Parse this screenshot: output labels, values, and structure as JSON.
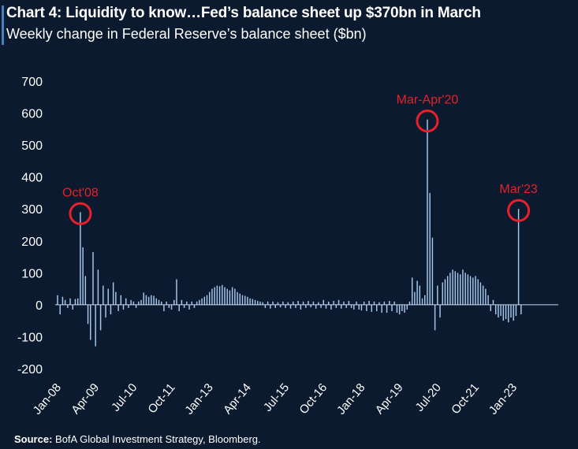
{
  "chart_data": {
    "type": "bar",
    "title": "Chart 4: Liquidity to know…Fed’s balance sheet up $370bn in March",
    "subtitle": "Weekly change in Federal Reserve’s balance sheet ($bn)",
    "xlabel": "",
    "ylabel": "",
    "ylim": [
      -200,
      700
    ],
    "yticks": [
      700,
      600,
      500,
      400,
      300,
      200,
      100,
      0,
      -100,
      -200
    ],
    "xlim": [
      "2008-01",
      "2024-07"
    ],
    "xticks": [
      {
        "label": "Jan-08",
        "date": "2008-01"
      },
      {
        "label": "Apr-09",
        "date": "2009-04"
      },
      {
        "label": "Jul-10",
        "date": "2010-07"
      },
      {
        "label": "Oct-11",
        "date": "2011-10"
      },
      {
        "label": "Jan-13",
        "date": "2013-01"
      },
      {
        "label": "Apr-14",
        "date": "2014-04"
      },
      {
        "label": "Jul-15",
        "date": "2015-07"
      },
      {
        "label": "Oct-16",
        "date": "2016-10"
      },
      {
        "label": "Jan-18",
        "date": "2018-01"
      },
      {
        "label": "Apr-19",
        "date": "2019-04"
      },
      {
        "label": "Jul-20",
        "date": "2020-07"
      },
      {
        "label": "Oct-21",
        "date": "2021-10"
      },
      {
        "label": "Jan-23",
        "date": "2023-01"
      }
    ],
    "grid": false,
    "series": [
      {
        "color": "#a9c8f0",
        "points": [
          [
            "2008-01",
            30
          ],
          [
            "2008-02",
            -30
          ],
          [
            "2008-03",
            25
          ],
          [
            "2008-04",
            15
          ],
          [
            "2008-05",
            -10
          ],
          [
            "2008-06",
            20
          ],
          [
            "2008-07",
            -15
          ],
          [
            "2008-08",
            18
          ],
          [
            "2008-09",
            20
          ],
          [
            "2008-10",
            290
          ],
          [
            "2008-11",
            180
          ],
          [
            "2008-12",
            90
          ],
          [
            "2009-01",
            -60
          ],
          [
            "2009-02",
            -110
          ],
          [
            "2009-03",
            165
          ],
          [
            "2009-04",
            -130
          ],
          [
            "2009-05",
            110
          ],
          [
            "2009-06",
            -80
          ],
          [
            "2009-07",
            60
          ],
          [
            "2009-08",
            -40
          ],
          [
            "2009-09",
            50
          ],
          [
            "2009-10",
            -30
          ],
          [
            "2009-11",
            70
          ],
          [
            "2009-12",
            40
          ],
          [
            "2010-01",
            -20
          ],
          [
            "2010-02",
            30
          ],
          [
            "2010-03",
            -15
          ],
          [
            "2010-04",
            20
          ],
          [
            "2010-05",
            -10
          ],
          [
            "2010-06",
            15
          ],
          [
            "2010-07",
            10
          ],
          [
            "2010-08",
            -10
          ],
          [
            "2010-09",
            10
          ],
          [
            "2010-10",
            15
          ],
          [
            "2010-11",
            38
          ],
          [
            "2010-12",
            30
          ],
          [
            "2011-01",
            25
          ],
          [
            "2011-02",
            30
          ],
          [
            "2011-03",
            28
          ],
          [
            "2011-04",
            20
          ],
          [
            "2011-05",
            15
          ],
          [
            "2011-06",
            10
          ],
          [
            "2011-07",
            -20
          ],
          [
            "2011-08",
            10
          ],
          [
            "2011-09",
            -10
          ],
          [
            "2011-10",
            -15
          ],
          [
            "2011-11",
            15
          ],
          [
            "2011-12",
            80
          ],
          [
            "2012-01",
            -20
          ],
          [
            "2012-02",
            15
          ],
          [
            "2012-03",
            -10
          ],
          [
            "2012-04",
            10
          ],
          [
            "2012-05",
            -15
          ],
          [
            "2012-06",
            10
          ],
          [
            "2012-07",
            -10
          ],
          [
            "2012-08",
            10
          ],
          [
            "2012-09",
            15
          ],
          [
            "2012-10",
            20
          ],
          [
            "2012-11",
            25
          ],
          [
            "2012-12",
            30
          ],
          [
            "2013-01",
            40
          ],
          [
            "2013-02",
            50
          ],
          [
            "2013-03",
            55
          ],
          [
            "2013-04",
            60
          ],
          [
            "2013-05",
            58
          ],
          [
            "2013-06",
            62
          ],
          [
            "2013-07",
            55
          ],
          [
            "2013-08",
            50
          ],
          [
            "2013-09",
            45
          ],
          [
            "2013-10",
            55
          ],
          [
            "2013-11",
            50
          ],
          [
            "2013-12",
            40
          ],
          [
            "2014-01",
            35
          ],
          [
            "2014-02",
            30
          ],
          [
            "2014-03",
            28
          ],
          [
            "2014-04",
            25
          ],
          [
            "2014-05",
            20
          ],
          [
            "2014-06",
            18
          ],
          [
            "2014-07",
            15
          ],
          [
            "2014-08",
            12
          ],
          [
            "2014-09",
            10
          ],
          [
            "2014-10",
            8
          ],
          [
            "2014-11",
            -10
          ],
          [
            "2014-12",
            10
          ],
          [
            "2015-01",
            -12
          ],
          [
            "2015-02",
            10
          ],
          [
            "2015-03",
            -10
          ],
          [
            "2015-04",
            8
          ],
          [
            "2015-05",
            -8
          ],
          [
            "2015-06",
            10
          ],
          [
            "2015-07",
            -10
          ],
          [
            "2015-08",
            8
          ],
          [
            "2015-09",
            -12
          ],
          [
            "2015-10",
            10
          ],
          [
            "2015-11",
            -10
          ],
          [
            "2015-12",
            12
          ],
          [
            "2016-01",
            -15
          ],
          [
            "2016-02",
            10
          ],
          [
            "2016-03",
            -10
          ],
          [
            "2016-04",
            12
          ],
          [
            "2016-05",
            -8
          ],
          [
            "2016-06",
            10
          ],
          [
            "2016-07",
            -12
          ],
          [
            "2016-08",
            8
          ],
          [
            "2016-09",
            -10
          ],
          [
            "2016-10",
            15
          ],
          [
            "2016-11",
            -12
          ],
          [
            "2016-12",
            10
          ],
          [
            "2017-01",
            -15
          ],
          [
            "2017-02",
            12
          ],
          [
            "2017-03",
            -10
          ],
          [
            "2017-04",
            15
          ],
          [
            "2017-05",
            -12
          ],
          [
            "2017-06",
            10
          ],
          [
            "2017-07",
            -10
          ],
          [
            "2017-08",
            12
          ],
          [
            "2017-09",
            -10
          ],
          [
            "2017-10",
            -15
          ],
          [
            "2017-11",
            10
          ],
          [
            "2017-12",
            -15
          ],
          [
            "2018-01",
            -18
          ],
          [
            "2018-02",
            10
          ],
          [
            "2018-03",
            -20
          ],
          [
            "2018-04",
            12
          ],
          [
            "2018-05",
            -22
          ],
          [
            "2018-06",
            10
          ],
          [
            "2018-07",
            -20
          ],
          [
            "2018-08",
            8
          ],
          [
            "2018-09",
            -25
          ],
          [
            "2018-10",
            10
          ],
          [
            "2018-11",
            -25
          ],
          [
            "2018-12",
            12
          ],
          [
            "2019-01",
            -20
          ],
          [
            "2019-02",
            10
          ],
          [
            "2019-03",
            -25
          ],
          [
            "2019-04",
            -30
          ],
          [
            "2019-05",
            -20
          ],
          [
            "2019-06",
            -25
          ],
          [
            "2019-07",
            -15
          ],
          [
            "2019-08",
            10
          ],
          [
            "2019-09",
            85
          ],
          [
            "2019-10",
            40
          ],
          [
            "2019-11",
            75
          ],
          [
            "2019-12",
            60
          ],
          [
            "2020-01",
            20
          ],
          [
            "2020-02",
            30
          ],
          [
            "2020-03",
            580
          ],
          [
            "2020-04",
            350
          ],
          [
            "2020-05",
            210
          ],
          [
            "2020-06",
            -80
          ],
          [
            "2020-07",
            60
          ],
          [
            "2020-08",
            -40
          ],
          [
            "2020-09",
            70
          ],
          [
            "2020-10",
            80
          ],
          [
            "2020-11",
            90
          ],
          [
            "2020-12",
            100
          ],
          [
            "2021-01",
            110
          ],
          [
            "2021-02",
            105
          ],
          [
            "2021-03",
            100
          ],
          [
            "2021-04",
            95
          ],
          [
            "2021-05",
            110
          ],
          [
            "2021-06",
            100
          ],
          [
            "2021-07",
            95
          ],
          [
            "2021-08",
            90
          ],
          [
            "2021-09",
            85
          ],
          [
            "2021-10",
            90
          ],
          [
            "2021-11",
            80
          ],
          [
            "2021-12",
            70
          ],
          [
            "2022-01",
            60
          ],
          [
            "2022-02",
            50
          ],
          [
            "2022-03",
            30
          ],
          [
            "2022-04",
            -20
          ],
          [
            "2022-05",
            15
          ],
          [
            "2022-06",
            -30
          ],
          [
            "2022-07",
            -40
          ],
          [
            "2022-08",
            -35
          ],
          [
            "2022-09",
            -50
          ],
          [
            "2022-10",
            -45
          ],
          [
            "2022-11",
            -55
          ],
          [
            "2022-12",
            -40
          ],
          [
            "2023-01",
            -50
          ],
          [
            "2023-02",
            -35
          ],
          [
            "2023-03",
            300
          ],
          [
            "2023-04",
            -30
          ]
        ]
      }
    ],
    "annotations": [
      {
        "text": "Oct'08",
        "date": "2008-10",
        "value": 290,
        "color": "#e8202a"
      },
      {
        "text": "Mar-Apr'20",
        "date": "2020-03",
        "value": 580,
        "color": "#e8202a"
      },
      {
        "text": "Mar'23",
        "date": "2023-03",
        "value": 300,
        "color": "#e8202a"
      }
    ]
  },
  "footer": {
    "source_label": "Source:",
    "source_text": "BofA Global Investment Strategy, Bloomberg."
  }
}
